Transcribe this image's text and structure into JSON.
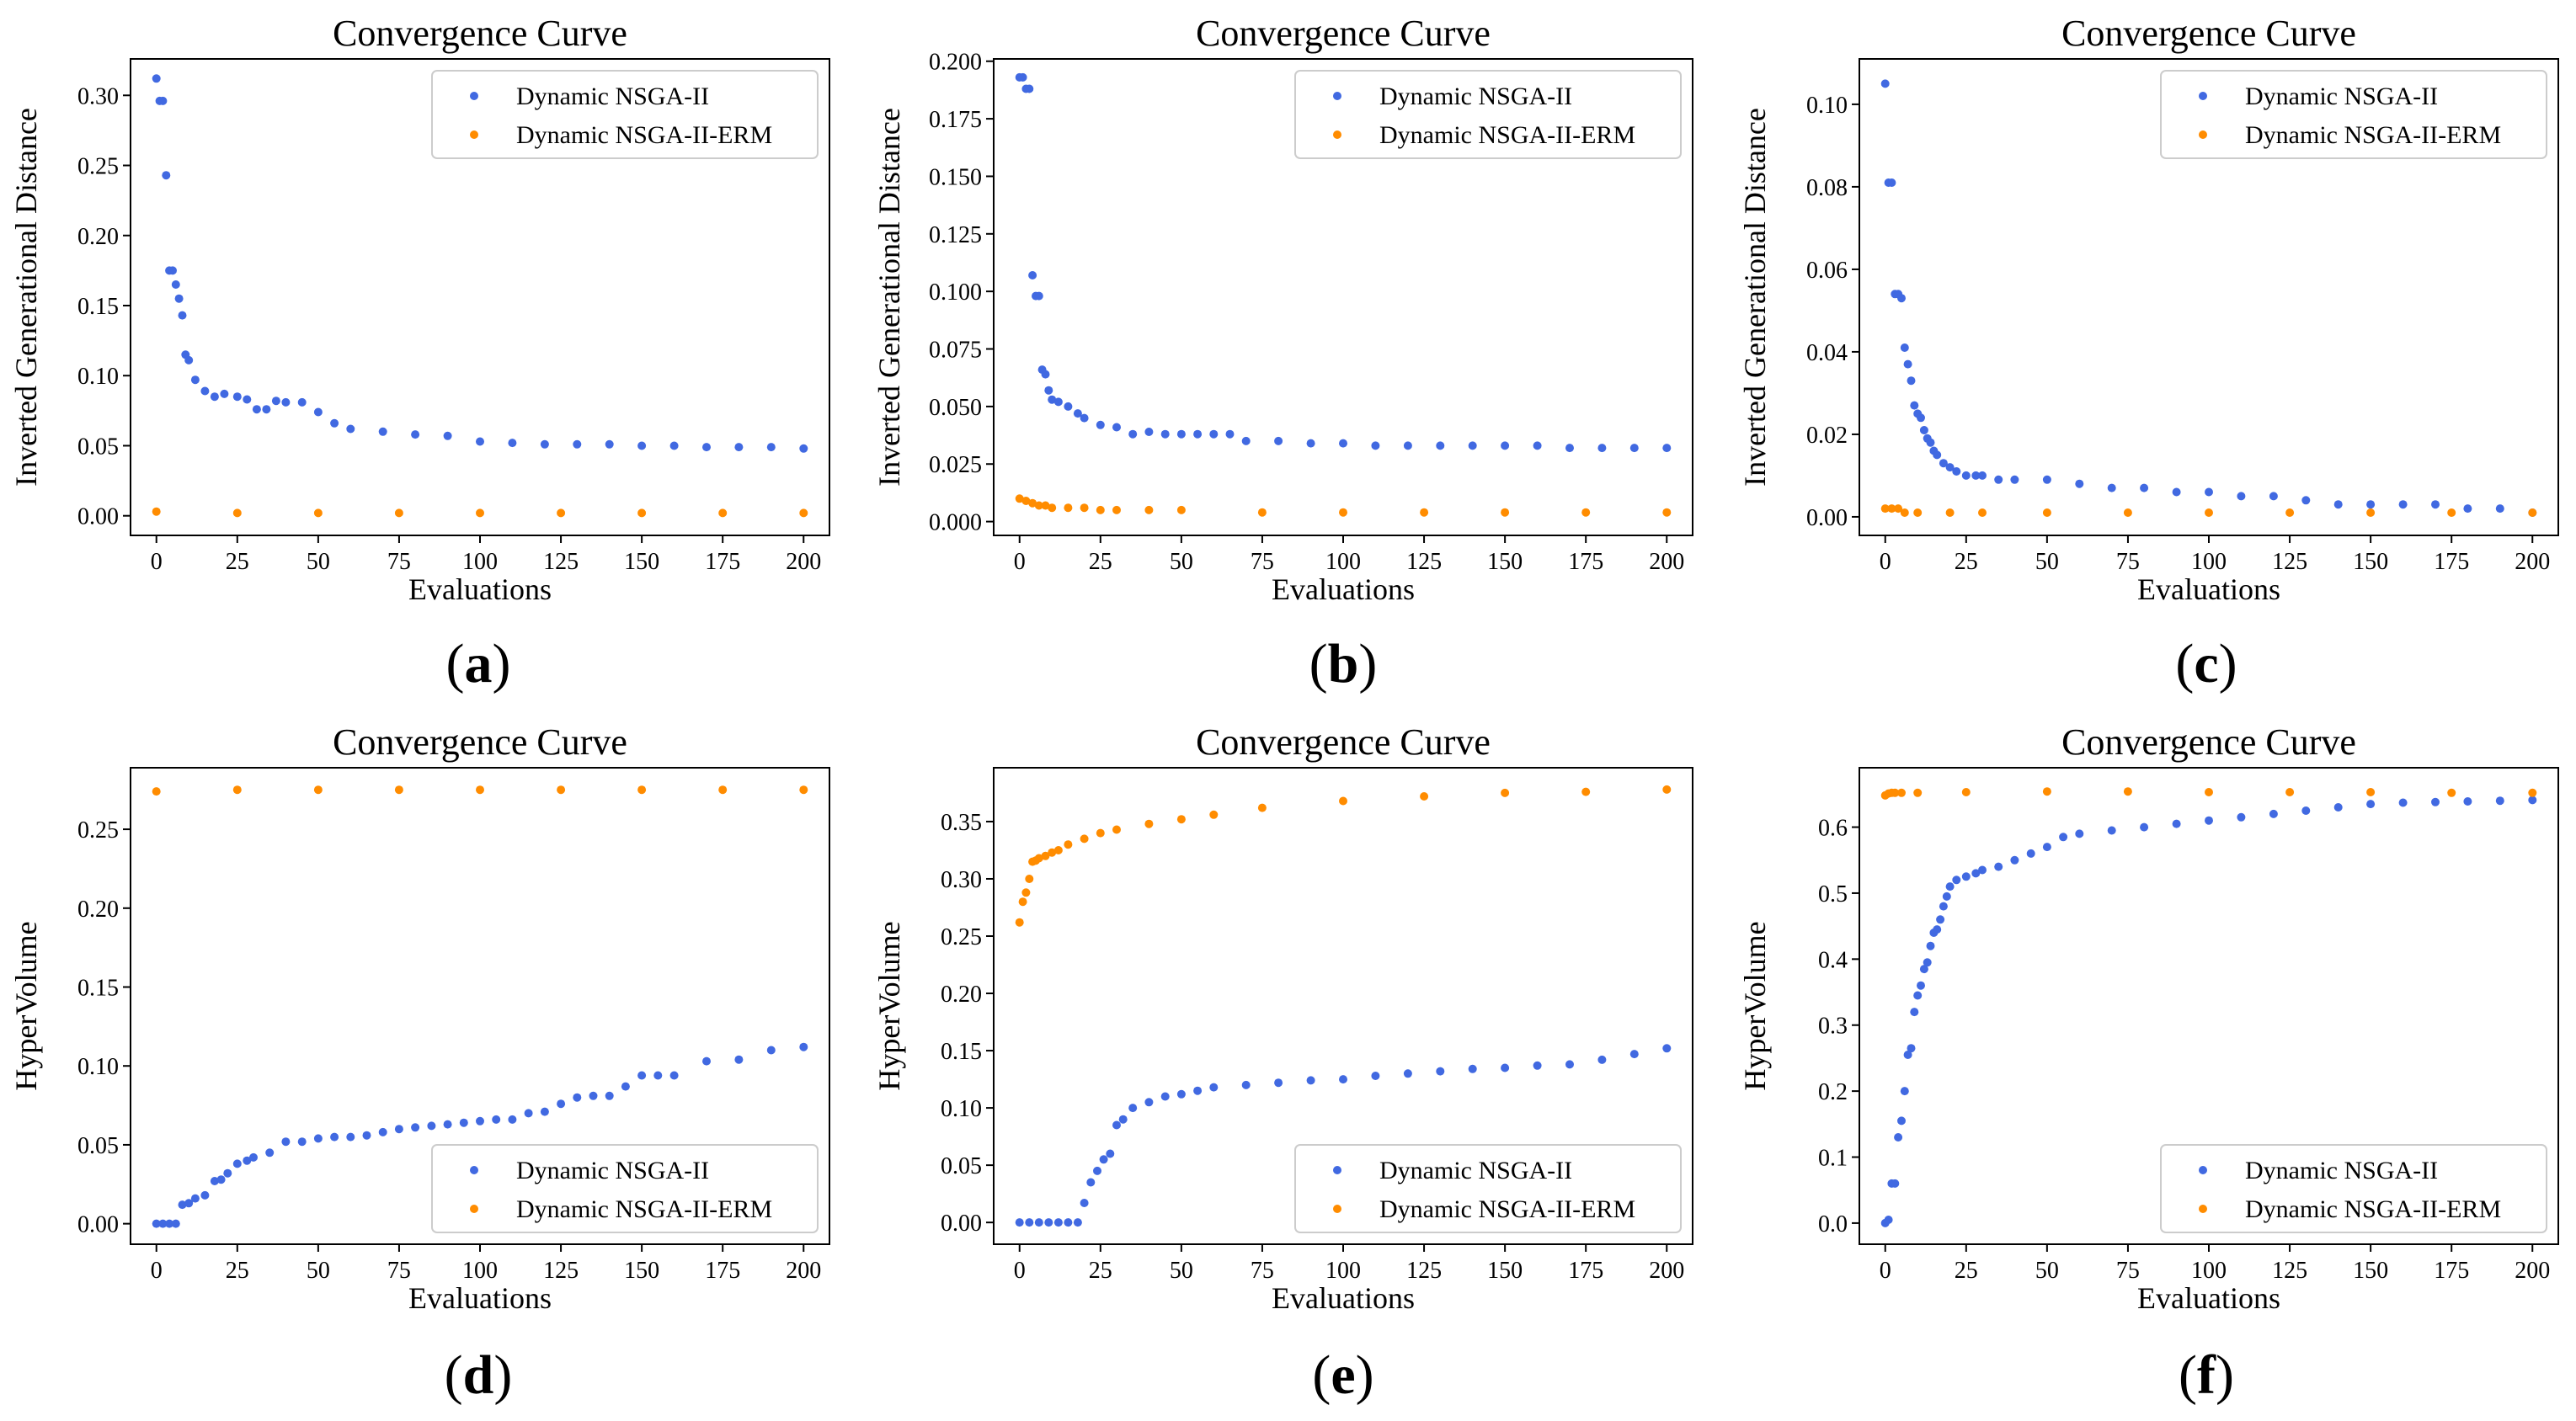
{
  "colors": {
    "nsga2": "#4169e1",
    "erm": "#ff8c00",
    "axis": "#000000",
    "legend_border": "#cccccc"
  },
  "legend": {
    "series": [
      "Dynamic NSGA-II",
      "Dynamic NSGA-II-ERM"
    ]
  },
  "chart_data": [
    {
      "id": "a",
      "sub_label": "(a)",
      "sub_letter": "a",
      "type": "scatter",
      "title": "Convergence Curve",
      "xlabel": "Evaluations",
      "ylabel": "Inverted Generational Distance",
      "xlim": [
        -8,
        208
      ],
      "ylim": [
        -0.014,
        0.326
      ],
      "xticks": [
        0,
        25,
        50,
        75,
        100,
        125,
        150,
        175,
        200
      ],
      "yticks": [
        "0.00",
        "0.05",
        "0.10",
        "0.15",
        "0.20",
        "0.25",
        "0.30"
      ],
      "legend_position": "upper right",
      "series": [
        {
          "name": "Dynamic NSGA-II",
          "x": [
            0,
            1,
            2,
            3,
            4,
            5,
            6,
            7,
            8,
            9,
            10,
            12,
            15,
            18,
            21,
            25,
            28,
            31,
            34,
            37,
            40,
            45,
            50,
            55,
            60,
            70,
            80,
            90,
            100,
            110,
            120,
            130,
            140,
            150,
            160,
            170,
            180,
            190,
            200
          ],
          "y": [
            0.312,
            0.296,
            0.296,
            0.243,
            0.175,
            0.175,
            0.165,
            0.155,
            0.143,
            0.115,
            0.111,
            0.097,
            0.089,
            0.085,
            0.087,
            0.085,
            0.083,
            0.076,
            0.076,
            0.082,
            0.081,
            0.081,
            0.074,
            0.066,
            0.062,
            0.06,
            0.058,
            0.057,
            0.053,
            0.052,
            0.051,
            0.051,
            0.051,
            0.05,
            0.05,
            0.049,
            0.049,
            0.049,
            0.048
          ]
        },
        {
          "name": "Dynamic NSGA-II-ERM",
          "x": [
            0,
            25,
            50,
            75,
            100,
            125,
            150,
            175,
            200
          ],
          "y": [
            0.003,
            0.002,
            0.002,
            0.002,
            0.002,
            0.002,
            0.002,
            0.002,
            0.002
          ]
        }
      ]
    },
    {
      "id": "b",
      "sub_label": "(b)",
      "sub_letter": "b",
      "type": "scatter",
      "title": "Convergence Curve",
      "xlabel": "Evaluations",
      "ylabel": "Inverted Generational Distance",
      "xlim": [
        -8,
        208
      ],
      "ylim": [
        -0.006,
        0.201
      ],
      "xticks": [
        0,
        25,
        50,
        75,
        100,
        125,
        150,
        175,
        200
      ],
      "yticks": [
        "0.000",
        "0.025",
        "0.050",
        "0.075",
        "0.100",
        "0.125",
        "0.150",
        "0.175",
        "0.200"
      ],
      "legend_position": "upper right",
      "series": [
        {
          "name": "Dynamic NSGA-II",
          "x": [
            0,
            1,
            2,
            3,
            4,
            5,
            6,
            7,
            8,
            9,
            10,
            12,
            15,
            18,
            20,
            25,
            30,
            35,
            40,
            45,
            50,
            55,
            60,
            65,
            70,
            80,
            90,
            100,
            110,
            120,
            130,
            140,
            150,
            160,
            170,
            180,
            190,
            200
          ],
          "y": [
            0.193,
            0.193,
            0.188,
            0.188,
            0.107,
            0.098,
            0.098,
            0.066,
            0.064,
            0.057,
            0.053,
            0.052,
            0.05,
            0.047,
            0.045,
            0.042,
            0.041,
            0.038,
            0.039,
            0.038,
            0.038,
            0.038,
            0.038,
            0.038,
            0.035,
            0.035,
            0.034,
            0.034,
            0.033,
            0.033,
            0.033,
            0.033,
            0.033,
            0.033,
            0.032,
            0.032,
            0.032,
            0.032
          ]
        },
        {
          "name": "Dynamic NSGA-II-ERM",
          "x": [
            0,
            2,
            4,
            6,
            8,
            10,
            15,
            20,
            25,
            30,
            40,
            50,
            75,
            100,
            125,
            150,
            175,
            200
          ],
          "y": [
            0.01,
            0.009,
            0.008,
            0.007,
            0.007,
            0.006,
            0.006,
            0.006,
            0.005,
            0.005,
            0.005,
            0.005,
            0.004,
            0.004,
            0.004,
            0.004,
            0.004,
            0.004
          ]
        }
      ]
    },
    {
      "id": "c",
      "sub_label": "(c)",
      "sub_letter": "c",
      "type": "scatter",
      "title": "Convergence Curve",
      "xlabel": "Evaluations",
      "ylabel": "Inverted Generational Distance",
      "xlim": [
        -8,
        208
      ],
      "ylim": [
        -0.0045,
        0.111
      ],
      "xticks": [
        0,
        25,
        50,
        75,
        100,
        125,
        150,
        175,
        200
      ],
      "yticks": [
        "0.00",
        "0.02",
        "0.04",
        "0.06",
        "0.08",
        "0.10"
      ],
      "legend_position": "upper right",
      "series": [
        {
          "name": "Dynamic NSGA-II",
          "x": [
            0,
            1,
            2,
            3,
            4,
            5,
            6,
            7,
            8,
            9,
            10,
            11,
            12,
            13,
            14,
            15,
            16,
            18,
            20,
            22,
            25,
            28,
            30,
            35,
            40,
            50,
            60,
            70,
            80,
            90,
            100,
            110,
            120,
            130,
            140,
            150,
            160,
            170,
            180,
            190,
            200
          ],
          "y": [
            0.105,
            0.081,
            0.081,
            0.054,
            0.054,
            0.053,
            0.041,
            0.037,
            0.033,
            0.027,
            0.025,
            0.024,
            0.021,
            0.019,
            0.018,
            0.016,
            0.015,
            0.013,
            0.012,
            0.011,
            0.01,
            0.01,
            0.01,
            0.009,
            0.009,
            0.009,
            0.008,
            0.007,
            0.007,
            0.006,
            0.006,
            0.005,
            0.005,
            0.004,
            0.003,
            0.003,
            0.003,
            0.003,
            0.002,
            0.002,
            0.001
          ]
        },
        {
          "name": "Dynamic NSGA-II-ERM",
          "x": [
            0,
            2,
            4,
            6,
            10,
            20,
            30,
            50,
            75,
            100,
            125,
            150,
            175,
            200
          ],
          "y": [
            0.002,
            0.002,
            0.002,
            0.001,
            0.001,
            0.001,
            0.001,
            0.001,
            0.001,
            0.001,
            0.001,
            0.001,
            0.001,
            0.001
          ]
        }
      ]
    },
    {
      "id": "d",
      "sub_label": "(d)",
      "sub_letter": "d",
      "type": "scatter",
      "title": "Convergence Curve",
      "xlabel": "Evaluations",
      "ylabel": "HyperVolume",
      "xlim": [
        -8,
        208
      ],
      "ylim": [
        -0.013,
        0.289
      ],
      "xticks": [
        0,
        25,
        50,
        75,
        100,
        125,
        150,
        175,
        200
      ],
      "yticks": [
        "0.00",
        "0.05",
        "0.10",
        "0.15",
        "0.20",
        "0.25"
      ],
      "legend_position": "lower right",
      "series": [
        {
          "name": "Dynamic NSGA-II",
          "x": [
            0,
            2,
            4,
            6,
            8,
            10,
            12,
            15,
            18,
            20,
            22,
            25,
            28,
            30,
            35,
            40,
            45,
            50,
            55,
            60,
            65,
            70,
            75,
            80,
            85,
            90,
            95,
            100,
            105,
            110,
            115,
            120,
            125,
            130,
            135,
            140,
            145,
            150,
            155,
            160,
            170,
            180,
            190,
            200
          ],
          "y": [
            0.0,
            0.0,
            0.0,
            0.0,
            0.012,
            0.013,
            0.016,
            0.018,
            0.027,
            0.028,
            0.032,
            0.038,
            0.04,
            0.042,
            0.045,
            0.052,
            0.052,
            0.054,
            0.055,
            0.055,
            0.056,
            0.058,
            0.06,
            0.061,
            0.062,
            0.063,
            0.064,
            0.065,
            0.066,
            0.066,
            0.07,
            0.071,
            0.076,
            0.08,
            0.081,
            0.081,
            0.087,
            0.094,
            0.094,
            0.094,
            0.103,
            0.104,
            0.11,
            0.112
          ]
        },
        {
          "name": "Dynamic NSGA-II-ERM",
          "x": [
            0,
            25,
            50,
            75,
            100,
            125,
            150,
            175,
            200
          ],
          "y": [
            0.274,
            0.275,
            0.275,
            0.275,
            0.275,
            0.275,
            0.275,
            0.275,
            0.275
          ]
        }
      ]
    },
    {
      "id": "e",
      "sub_label": "(e)",
      "sub_letter": "e",
      "type": "scatter",
      "title": "Convergence Curve",
      "xlabel": "Evaluations",
      "ylabel": "HyperVolume",
      "xlim": [
        -8,
        208
      ],
      "ylim": [
        -0.019,
        0.397
      ],
      "xticks": [
        0,
        25,
        50,
        75,
        100,
        125,
        150,
        175,
        200
      ],
      "yticks": [
        "0.00",
        "0.05",
        "0.10",
        "0.15",
        "0.20",
        "0.25",
        "0.30",
        "0.35"
      ],
      "legend_position": "lower right",
      "series": [
        {
          "name": "Dynamic NSGA-II",
          "x": [
            0,
            3,
            6,
            9,
            12,
            15,
            18,
            20,
            22,
            24,
            26,
            28,
            30,
            32,
            35,
            40,
            45,
            50,
            55,
            60,
            70,
            80,
            90,
            100,
            110,
            120,
            130,
            140,
            150,
            160,
            170,
            180,
            190,
            200
          ],
          "y": [
            0.0,
            0.0,
            0.0,
            0.0,
            0.0,
            0.0,
            0.0,
            0.017,
            0.035,
            0.045,
            0.055,
            0.06,
            0.085,
            0.09,
            0.1,
            0.105,
            0.11,
            0.112,
            0.115,
            0.118,
            0.12,
            0.122,
            0.124,
            0.125,
            0.128,
            0.13,
            0.132,
            0.134,
            0.135,
            0.137,
            0.138,
            0.142,
            0.147,
            0.152
          ]
        },
        {
          "name": "Dynamic NSGA-II-ERM",
          "x": [
            0,
            1,
            2,
            3,
            4,
            5,
            6,
            8,
            10,
            12,
            15,
            20,
            25,
            30,
            40,
            50,
            60,
            75,
            100,
            125,
            150,
            175,
            200
          ],
          "y": [
            0.262,
            0.28,
            0.288,
            0.3,
            0.315,
            0.316,
            0.318,
            0.32,
            0.323,
            0.325,
            0.33,
            0.335,
            0.34,
            0.343,
            0.348,
            0.352,
            0.356,
            0.362,
            0.368,
            0.372,
            0.375,
            0.376,
            0.378
          ]
        }
      ]
    },
    {
      "id": "f",
      "sub_label": "(f)",
      "sub_letter": "f",
      "type": "scatter",
      "title": "Convergence Curve",
      "xlabel": "Evaluations",
      "ylabel": "HyperVolume",
      "xlim": [
        -8,
        208
      ],
      "ylim": [
        -0.032,
        0.69
      ],
      "xticks": [
        0,
        25,
        50,
        75,
        100,
        125,
        150,
        175,
        200
      ],
      "yticks": [
        "0.0",
        "0.1",
        "0.2",
        "0.3",
        "0.4",
        "0.5",
        "0.6"
      ],
      "legend_position": "lower right",
      "series": [
        {
          "name": "Dynamic NSGA-II",
          "x": [
            0,
            1,
            2,
            3,
            4,
            5,
            6,
            7,
            8,
            9,
            10,
            11,
            12,
            13,
            14,
            15,
            16,
            17,
            18,
            19,
            20,
            22,
            25,
            28,
            30,
            35,
            40,
            45,
            50,
            55,
            60,
            70,
            80,
            90,
            100,
            110,
            120,
            130,
            140,
            150,
            160,
            170,
            180,
            190,
            200
          ],
          "y": [
            0.0,
            0.005,
            0.06,
            0.06,
            0.13,
            0.155,
            0.2,
            0.255,
            0.265,
            0.32,
            0.345,
            0.36,
            0.385,
            0.395,
            0.42,
            0.44,
            0.445,
            0.46,
            0.48,
            0.495,
            0.51,
            0.52,
            0.525,
            0.53,
            0.535,
            0.54,
            0.55,
            0.56,
            0.57,
            0.585,
            0.59,
            0.595,
            0.6,
            0.605,
            0.61,
            0.615,
            0.62,
            0.625,
            0.63,
            0.635,
            0.637,
            0.638,
            0.639,
            0.64,
            0.641
          ]
        },
        {
          "name": "Dynamic NSGA-II-ERM",
          "x": [
            0,
            1,
            2,
            3,
            5,
            10,
            25,
            50,
            75,
            100,
            125,
            150,
            175,
            200
          ],
          "y": [
            0.648,
            0.651,
            0.652,
            0.652,
            0.652,
            0.652,
            0.653,
            0.654,
            0.654,
            0.653,
            0.653,
            0.653,
            0.652,
            0.652
          ]
        }
      ]
    }
  ]
}
